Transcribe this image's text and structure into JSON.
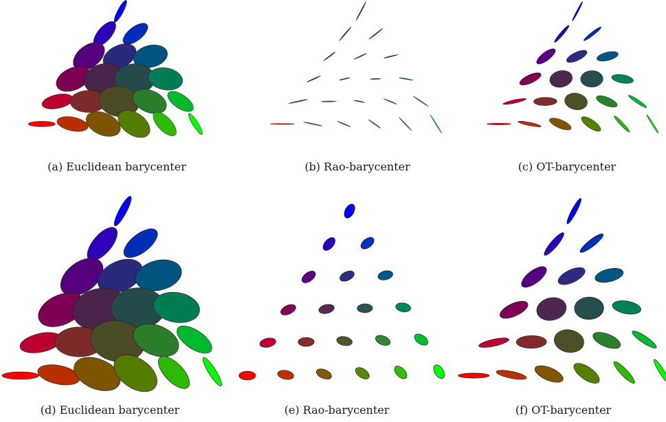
{
  "figure": {
    "panels": [
      {
        "id": "a",
        "caption": "(a) Euclidean barycenter",
        "method": "euclidean",
        "row": 0
      },
      {
        "id": "b",
        "caption": "(b) Rao-barycenter",
        "method": "rao",
        "row": 0
      },
      {
        "id": "c",
        "caption": "(c) OT-barycenter",
        "method": "ot",
        "row": 0
      },
      {
        "id": "d",
        "caption": "(d) Euclidean barycenter",
        "method": "euclidean",
        "row": 1
      },
      {
        "id": "e",
        "caption": "(e) Rao-barycenter",
        "method": "rao",
        "row": 1
      },
      {
        "id": "f",
        "caption": "(f) OT-barycenter",
        "method": "ot",
        "row": 1
      }
    ],
    "grid_levels": 6,
    "corner_colors": {
      "top": "#0000ff",
      "left": "#ff0000",
      "right": "#00ff00"
    }
  }
}
